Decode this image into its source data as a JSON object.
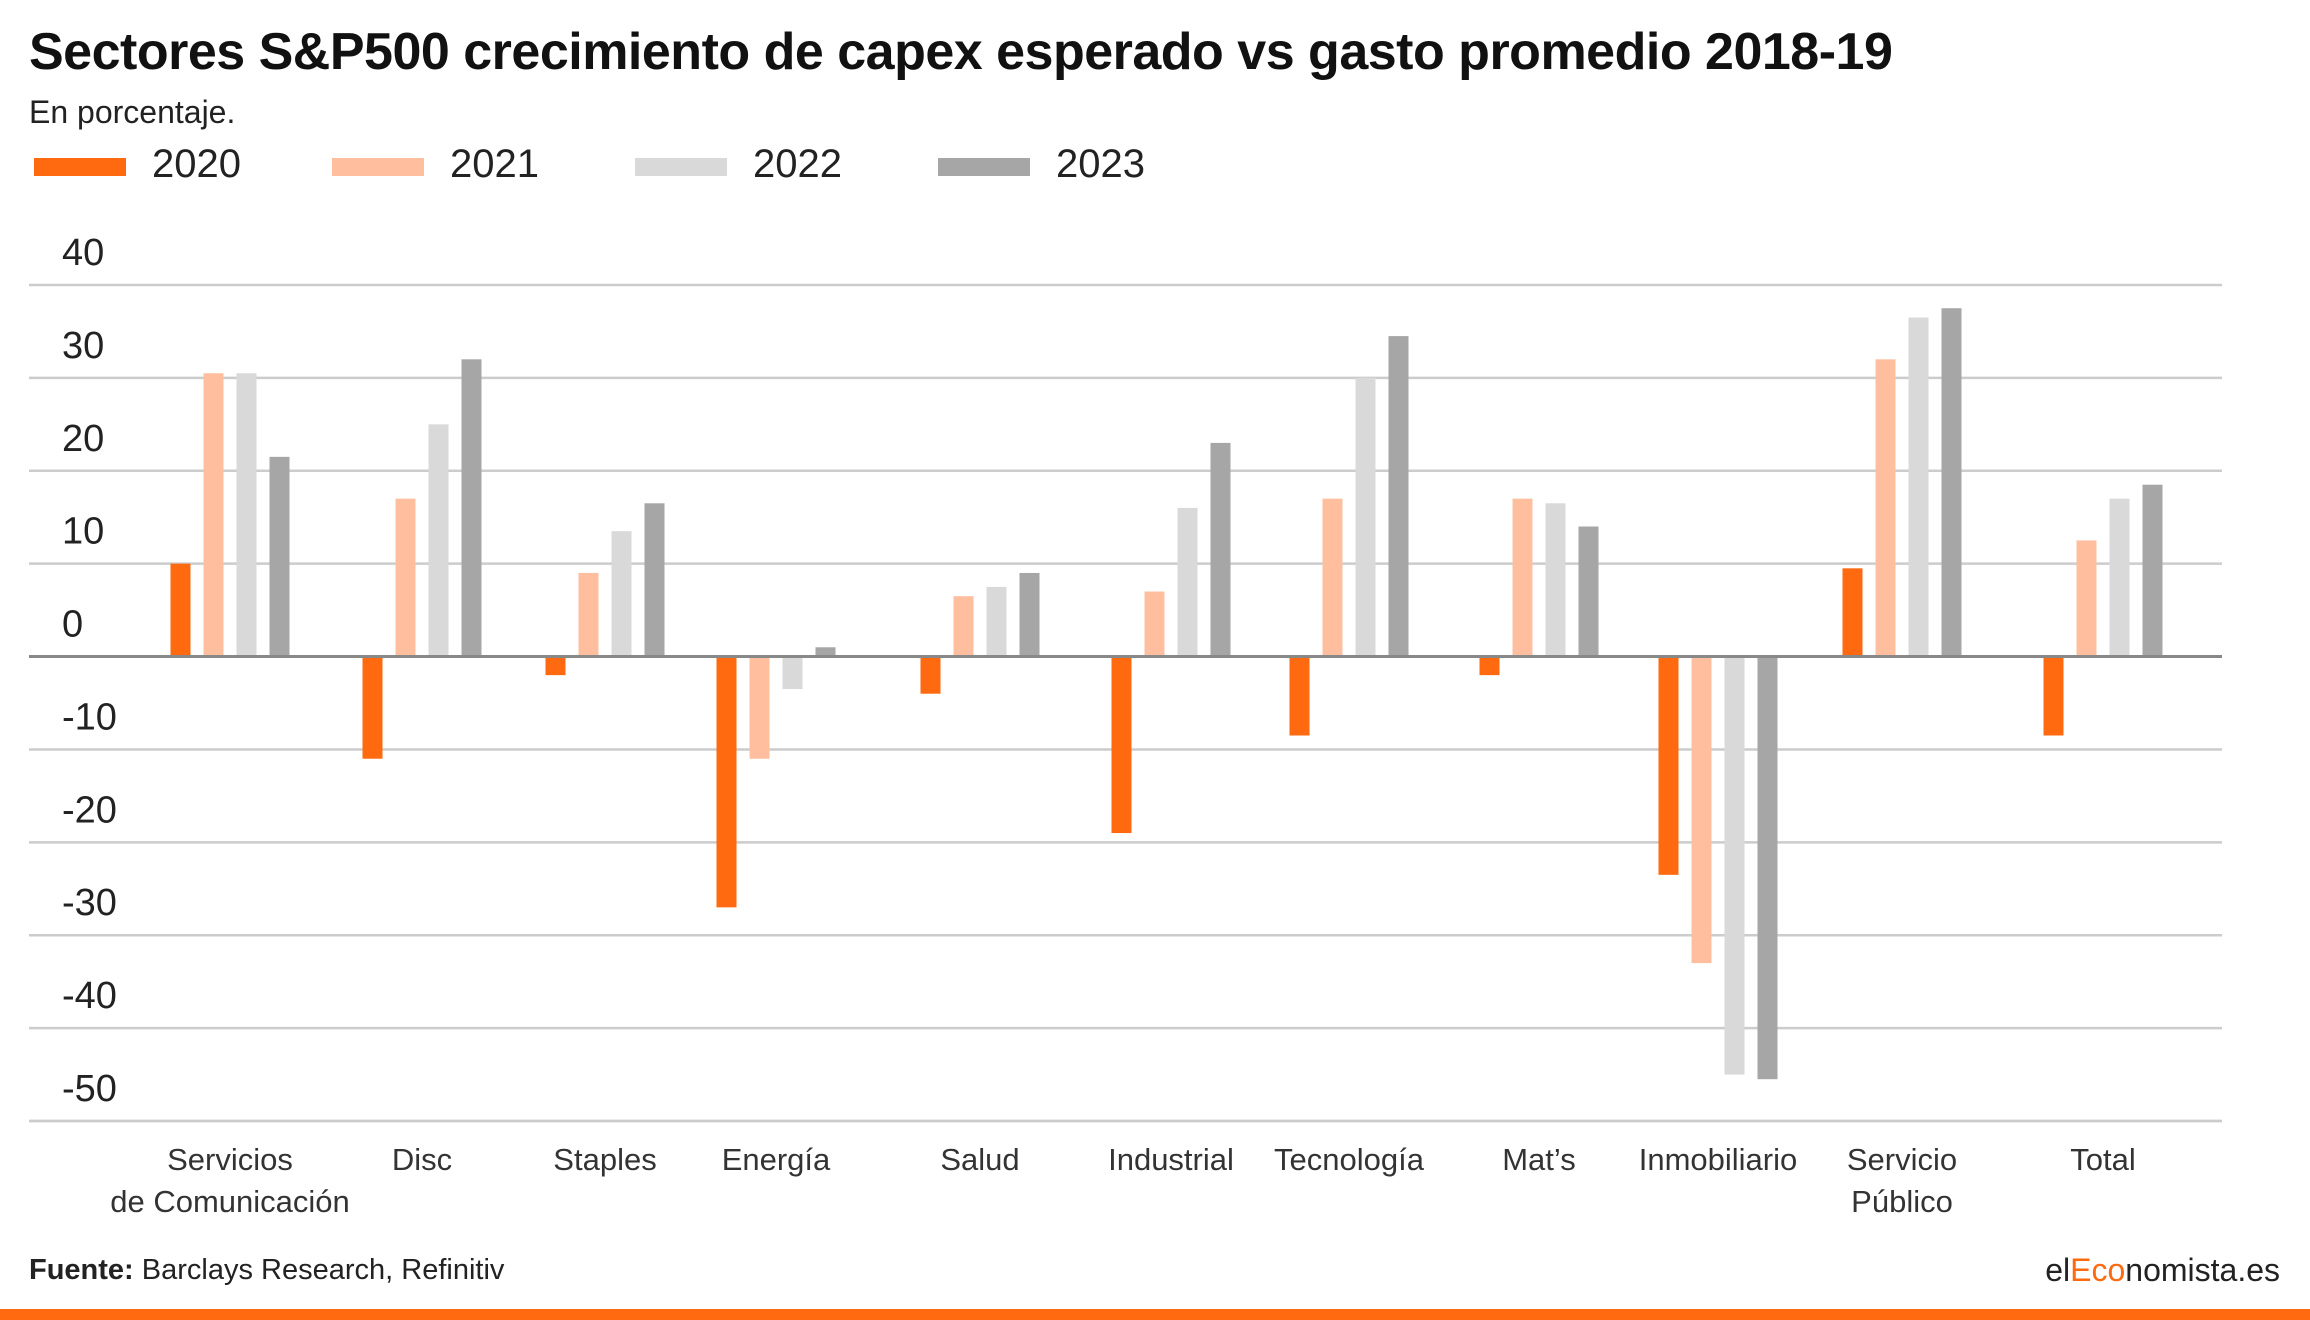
{
  "header": {
    "title": "Sectores S&P500 crecimiento de capex esperado vs gasto promedio 2018-19",
    "subtitle": "En porcentaje."
  },
  "footer": {
    "source_label": "Fuente:",
    "source_text": "Barclays Research, Refinitiv",
    "brand_prefix": "el",
    "brand_accent": "Eco",
    "brand_suffix": "nomista.es"
  },
  "colors": {
    "accent": "#ff6a10",
    "gridline": "#cccccc",
    "zero_line": "#888888"
  },
  "chart_data": {
    "type": "bar",
    "categories": [
      [
        "Servicios",
        "de Comunicación"
      ],
      [
        "Disc"
      ],
      [
        "Staples"
      ],
      [
        "Energía"
      ],
      [
        "Salud"
      ],
      [
        "Industrial"
      ],
      [
        "Tecnología"
      ],
      [
        "Mat’s"
      ],
      [
        "Inmobiliario"
      ],
      [
        "Servicio",
        "Público"
      ],
      [
        "Total"
      ]
    ],
    "series": [
      {
        "name": "2020",
        "color": "#ff6a10",
        "values": [
          10,
          -11,
          -2,
          -27,
          -4,
          -19,
          -8.5,
          -2,
          -23.5,
          9.5,
          -8.5
        ]
      },
      {
        "name": "2021",
        "color": "#ffbf9f",
        "values": [
          30.5,
          17,
          9,
          -11,
          6.5,
          7,
          17,
          17,
          -33,
          32,
          12.5
        ]
      },
      {
        "name": "2022",
        "color": "#d9d9d9",
        "values": [
          30.5,
          25,
          13.5,
          -3.5,
          7.5,
          16,
          30,
          16.5,
          -45,
          36.5,
          17
        ]
      },
      {
        "name": "2023",
        "color": "#a6a6a6",
        "values": [
          21.5,
          32,
          16.5,
          1,
          9,
          23,
          34.5,
          14,
          -45.5,
          37.5,
          18.5
        ]
      }
    ],
    "yticks": [
      40,
      30,
      20,
      10,
      0,
      -10,
      -20,
      -30,
      -40,
      -50
    ],
    "ylim": [
      -50,
      40
    ],
    "grid": true,
    "legend_position": "top-left"
  }
}
